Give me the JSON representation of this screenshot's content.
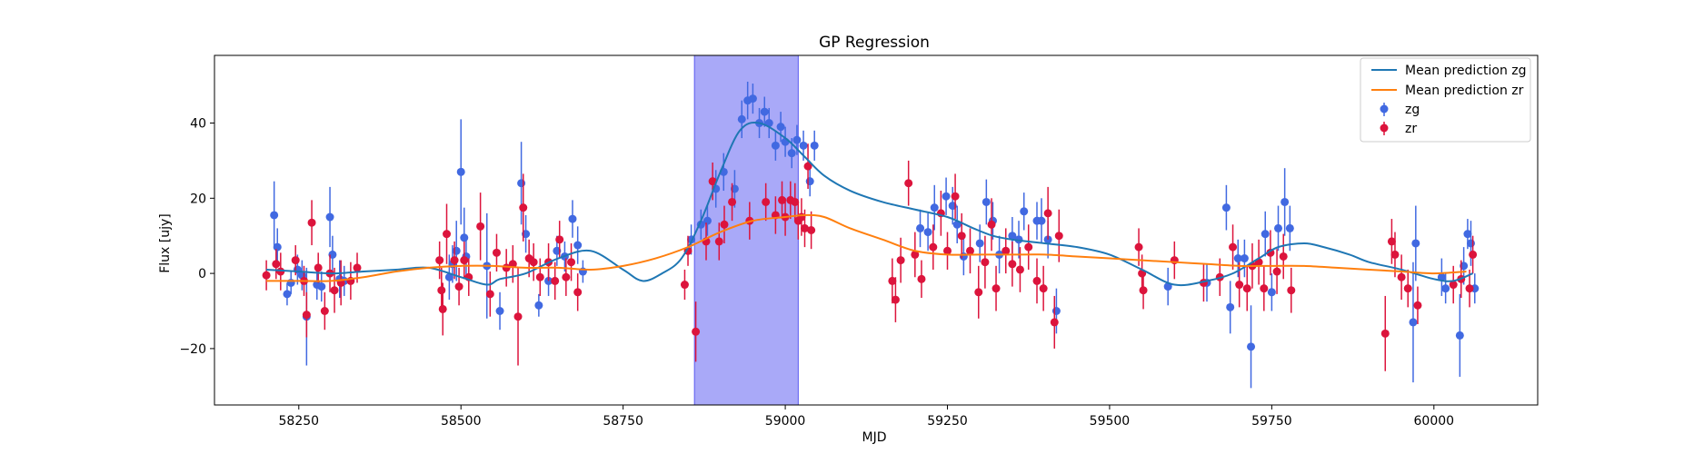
{
  "chart_data": {
    "type": "scatter",
    "title": "GP Regression",
    "xlabel": "MJD",
    "ylabel": "Flux [ujy]",
    "xlim": [
      58120,
      60160
    ],
    "ylim": [
      -35,
      58
    ],
    "xticks": [
      58250,
      58500,
      58750,
      59000,
      59250,
      59500,
      59750,
      60000
    ],
    "yticks": [
      -20,
      0,
      20,
      40
    ],
    "grid": false,
    "legend_position": "top-right",
    "shaded_region": {
      "x": [
        58860,
        59020
      ],
      "color": "#a9a9f8"
    },
    "colors": {
      "zg_points": "#4169e1",
      "zr_points": "#dc143c",
      "zg_line": "#1f77b4",
      "zr_line": "#ff7f0e"
    },
    "lines": [
      {
        "name": "Mean prediction zg",
        "color": "#1f77b4",
        "x": [
          58200,
          58250,
          58300,
          58350,
          58400,
          58450,
          58500,
          58540,
          58560,
          58600,
          58650,
          58700,
          58750,
          58780,
          58810,
          58840,
          58870,
          58900,
          58930,
          58960,
          59000,
          59030,
          59060,
          59100,
          59150,
          59200,
          59250,
          59290,
          59320,
          59350,
          59400,
          59450,
          59500,
          59550,
          59600,
          59650,
          59690,
          59730,
          59760,
          59800,
          59830,
          59870,
          59900,
          59950,
          60000,
          60030,
          60060
        ],
        "y": [
          1,
          0.5,
          0,
          0.5,
          1,
          1.5,
          -1,
          -3,
          -1.5,
          0,
          4,
          6,
          1,
          -2,
          0,
          4,
          14,
          27,
          38,
          40,
          36,
          31,
          26,
          22,
          19,
          17,
          15,
          12,
          10,
          9,
          8,
          7,
          5,
          1,
          -3,
          -2,
          0,
          4,
          7,
          8,
          7,
          5,
          3,
          1,
          -1.5,
          -2,
          0
        ]
      },
      {
        "name": "Mean prediction zr",
        "color": "#ff7f0e",
        "x": [
          58200,
          58250,
          58300,
          58350,
          58400,
          58450,
          58500,
          58550,
          58600,
          58650,
          58700,
          58750,
          58800,
          58850,
          58900,
          58950,
          59000,
          59030,
          59060,
          59100,
          59150,
          59200,
          59250,
          59300,
          59350,
          59400,
          59450,
          59500,
          59550,
          59600,
          59650,
          59700,
          59750,
          59800,
          59850,
          59900,
          59950,
          60000,
          60050
        ],
        "y": [
          -2,
          -2,
          -2,
          -1,
          0.5,
          1.5,
          2,
          2,
          1.5,
          1.5,
          1,
          2,
          4,
          7,
          11,
          14,
          15,
          15.5,
          15,
          12,
          9,
          6,
          5,
          5,
          5,
          5,
          4.5,
          4,
          3.5,
          3,
          2.5,
          2,
          2,
          2,
          1.5,
          1,
          0.5,
          0,
          0.5
        ]
      }
    ],
    "series": [
      {
        "name": "zg",
        "color": "#4169e1",
        "points": [
          [
            58212,
            15.5,
            9
          ],
          [
            58217,
            7,
            5
          ],
          [
            58232,
            -5.5,
            3
          ],
          [
            58238,
            -2.5,
            3
          ],
          [
            58248,
            1,
            4
          ],
          [
            58255,
            -0.5,
            4
          ],
          [
            58262,
            -11.5,
            13
          ],
          [
            58278,
            -3,
            4
          ],
          [
            58285,
            -3.5,
            4
          ],
          [
            58298,
            15,
            8
          ],
          [
            58302,
            5,
            5
          ],
          [
            58313,
            -1.5,
            5
          ],
          [
            58320,
            -2,
            4
          ],
          [
            58482,
            -1,
            6
          ],
          [
            58487,
            2.5,
            5
          ],
          [
            58493,
            6,
            8
          ],
          [
            58500,
            27,
            14
          ],
          [
            58505,
            9.5,
            8
          ],
          [
            58508,
            4.5,
            5
          ],
          [
            58540,
            2,
            14
          ],
          [
            58560,
            -10,
            5
          ],
          [
            58593,
            24,
            11
          ],
          [
            58600,
            10.5,
            5
          ],
          [
            58620,
            -8.5,
            3
          ],
          [
            58635,
            -2,
            4
          ],
          [
            58648,
            6,
            4
          ],
          [
            58660,
            4.5,
            4
          ],
          [
            58672,
            14.5,
            5
          ],
          [
            58680,
            7.5,
            5
          ],
          [
            58688,
            0.5,
            3
          ],
          [
            58855,
            9,
            4
          ],
          [
            58870,
            13,
            4
          ],
          [
            58880,
            14,
            4
          ],
          [
            58893,
            22.5,
            5
          ],
          [
            58905,
            27,
            5
          ],
          [
            58922,
            22.5,
            5
          ],
          [
            58933,
            41,
            5
          ],
          [
            58942,
            46,
            5
          ],
          [
            58950,
            46.5,
            4
          ],
          [
            58960,
            40,
            4
          ],
          [
            58968,
            43,
            4
          ],
          [
            58975,
            40,
            4
          ],
          [
            58985,
            34,
            4
          ],
          [
            58993,
            39,
            4
          ],
          [
            59000,
            35,
            4
          ],
          [
            59010,
            32,
            4
          ],
          [
            59018,
            35.5,
            4
          ],
          [
            59028,
            34,
            4
          ],
          [
            59038,
            24.5,
            4
          ],
          [
            59045,
            34,
            4
          ],
          [
            59208,
            12,
            5
          ],
          [
            59220,
            11,
            5
          ],
          [
            59230,
            17.5,
            6
          ],
          [
            59248,
            20.5,
            5
          ],
          [
            59258,
            18,
            5
          ],
          [
            59265,
            13,
            5
          ],
          [
            59275,
            4.5,
            5
          ],
          [
            59300,
            8,
            5
          ],
          [
            59310,
            19,
            6
          ],
          [
            59320,
            14,
            5
          ],
          [
            59330,
            5,
            5
          ],
          [
            59350,
            10,
            5
          ],
          [
            59360,
            9,
            5
          ],
          [
            59368,
            16.5,
            5
          ],
          [
            59388,
            14,
            5
          ],
          [
            59395,
            14,
            6
          ],
          [
            59405,
            9,
            5
          ],
          [
            59418,
            -10,
            6
          ],
          [
            59590,
            -3.5,
            5
          ],
          [
            59650,
            -2.5,
            5
          ],
          [
            59680,
            17.5,
            6
          ],
          [
            59686,
            -9,
            7
          ],
          [
            59698,
            4,
            5
          ],
          [
            59708,
            4,
            5
          ],
          [
            59718,
            -19.5,
            11
          ],
          [
            59740,
            10.5,
            6
          ],
          [
            59750,
            -5,
            5
          ],
          [
            59760,
            12,
            6
          ],
          [
            59770,
            19,
            9
          ],
          [
            59778,
            12,
            6
          ],
          [
            59968,
            -13,
            16
          ],
          [
            59972,
            8,
            10
          ],
          [
            60012,
            -1,
            5
          ],
          [
            60018,
            -4,
            4
          ],
          [
            60040,
            -16.5,
            11
          ],
          [
            60046,
            2,
            5
          ],
          [
            60052,
            10.5,
            4
          ],
          [
            60057,
            8,
            6
          ],
          [
            60063,
            -4,
            4
          ]
        ]
      },
      {
        "name": "zr",
        "color": "#dc143c",
        "points": [
          [
            58200,
            -0.5,
            4
          ],
          [
            58215,
            2.5,
            4
          ],
          [
            58222,
            0.5,
            5
          ],
          [
            58245,
            3.5,
            4
          ],
          [
            58258,
            -2,
            4
          ],
          [
            58262,
            -11,
            6
          ],
          [
            58270,
            13.5,
            6
          ],
          [
            58280,
            1.5,
            4
          ],
          [
            58290,
            -10,
            5
          ],
          [
            58298,
            0,
            5
          ],
          [
            58305,
            -4.5,
            6
          ],
          [
            58315,
            -2.5,
            6
          ],
          [
            58330,
            -2,
            5
          ],
          [
            58340,
            1.5,
            4
          ],
          [
            58467,
            3.5,
            5
          ],
          [
            58470,
            -4.5,
            6
          ],
          [
            58472,
            -9.5,
            7
          ],
          [
            58478,
            10.5,
            8
          ],
          [
            58490,
            3.5,
            5
          ],
          [
            58497,
            -3.5,
            5
          ],
          [
            58505,
            3.5,
            5
          ],
          [
            58512,
            -1,
            5
          ],
          [
            58530,
            12.5,
            9
          ],
          [
            58545,
            -5.5,
            6
          ],
          [
            58555,
            5.5,
            5
          ],
          [
            58570,
            1.5,
            5
          ],
          [
            58580,
            2.5,
            5
          ],
          [
            58588,
            -11.5,
            13
          ],
          [
            58596,
            17.5,
            9
          ],
          [
            58605,
            4,
            5
          ],
          [
            58612,
            3,
            5
          ],
          [
            58622,
            -1,
            5
          ],
          [
            58635,
            3,
            5
          ],
          [
            58645,
            -2,
            5
          ],
          [
            58652,
            9,
            5
          ],
          [
            58662,
            -1,
            5
          ],
          [
            58670,
            3,
            5
          ],
          [
            58680,
            -5,
            5
          ],
          [
            58845,
            -3,
            4
          ],
          [
            58850,
            6,
            4
          ],
          [
            58862,
            -15.5,
            8
          ],
          [
            58878,
            8.5,
            5
          ],
          [
            58888,
            24.5,
            5
          ],
          [
            58898,
            8.5,
            5
          ],
          [
            58906,
            13,
            5
          ],
          [
            58918,
            19,
            5
          ],
          [
            58945,
            14,
            5
          ],
          [
            58970,
            19,
            5
          ],
          [
            58985,
            15.5,
            5
          ],
          [
            58995,
            19.5,
            5
          ],
          [
            59000,
            15,
            5
          ],
          [
            59008,
            19.5,
            5
          ],
          [
            59015,
            19,
            5
          ],
          [
            59020,
            14,
            5
          ],
          [
            59025,
            15,
            5
          ],
          [
            59030,
            12,
            5
          ],
          [
            59035,
            28.5,
            6
          ],
          [
            59040,
            11.5,
            5
          ],
          [
            59165,
            -2,
            6
          ],
          [
            59170,
            -7,
            6
          ],
          [
            59178,
            3.5,
            6
          ],
          [
            59190,
            24,
            6
          ],
          [
            59200,
            5,
            6
          ],
          [
            59210,
            -1.5,
            5
          ],
          [
            59228,
            7,
            6
          ],
          [
            59240,
            16,
            6
          ],
          [
            59250,
            6,
            5
          ],
          [
            59262,
            20.5,
            6
          ],
          [
            59272,
            10,
            6
          ],
          [
            59285,
            6,
            6
          ],
          [
            59298,
            -5,
            7
          ],
          [
            59308,
            3,
            7
          ],
          [
            59318,
            13,
            7
          ],
          [
            59325,
            -4,
            6
          ],
          [
            59340,
            6,
            6
          ],
          [
            59350,
            2.5,
            6
          ],
          [
            59362,
            1,
            6
          ],
          [
            59375,
            7,
            6
          ],
          [
            59388,
            -2,
            6
          ],
          [
            59398,
            -4,
            6
          ],
          [
            59405,
            16,
            7
          ],
          [
            59415,
            -13,
            7
          ],
          [
            59422,
            10,
            7
          ],
          [
            59545,
            7,
            5
          ],
          [
            59550,
            0,
            5
          ],
          [
            59552,
            -4.5,
            5
          ],
          [
            59600,
            3.5,
            5
          ],
          [
            59645,
            -2.5,
            5
          ],
          [
            59670,
            -1,
            5
          ],
          [
            59690,
            7,
            6
          ],
          [
            59700,
            -3,
            6
          ],
          [
            59712,
            -4,
            6
          ],
          [
            59720,
            2,
            6
          ],
          [
            59730,
            3,
            6
          ],
          [
            59738,
            -4,
            6
          ],
          [
            59748,
            5.5,
            6
          ],
          [
            59758,
            0.5,
            6
          ],
          [
            59768,
            4.5,
            6
          ],
          [
            59780,
            -4.5,
            6
          ],
          [
            59925,
            -16,
            10
          ],
          [
            59935,
            8.5,
            6
          ],
          [
            59940,
            5,
            6
          ],
          [
            59950,
            -1,
            6
          ],
          [
            59960,
            -4,
            5
          ],
          [
            59975,
            -8.5,
            5
          ],
          [
            60030,
            -3,
            5
          ],
          [
            60042,
            -1.5,
            5
          ],
          [
            60055,
            -4,
            5
          ],
          [
            60060,
            5,
            5
          ]
        ]
      }
    ]
  }
}
